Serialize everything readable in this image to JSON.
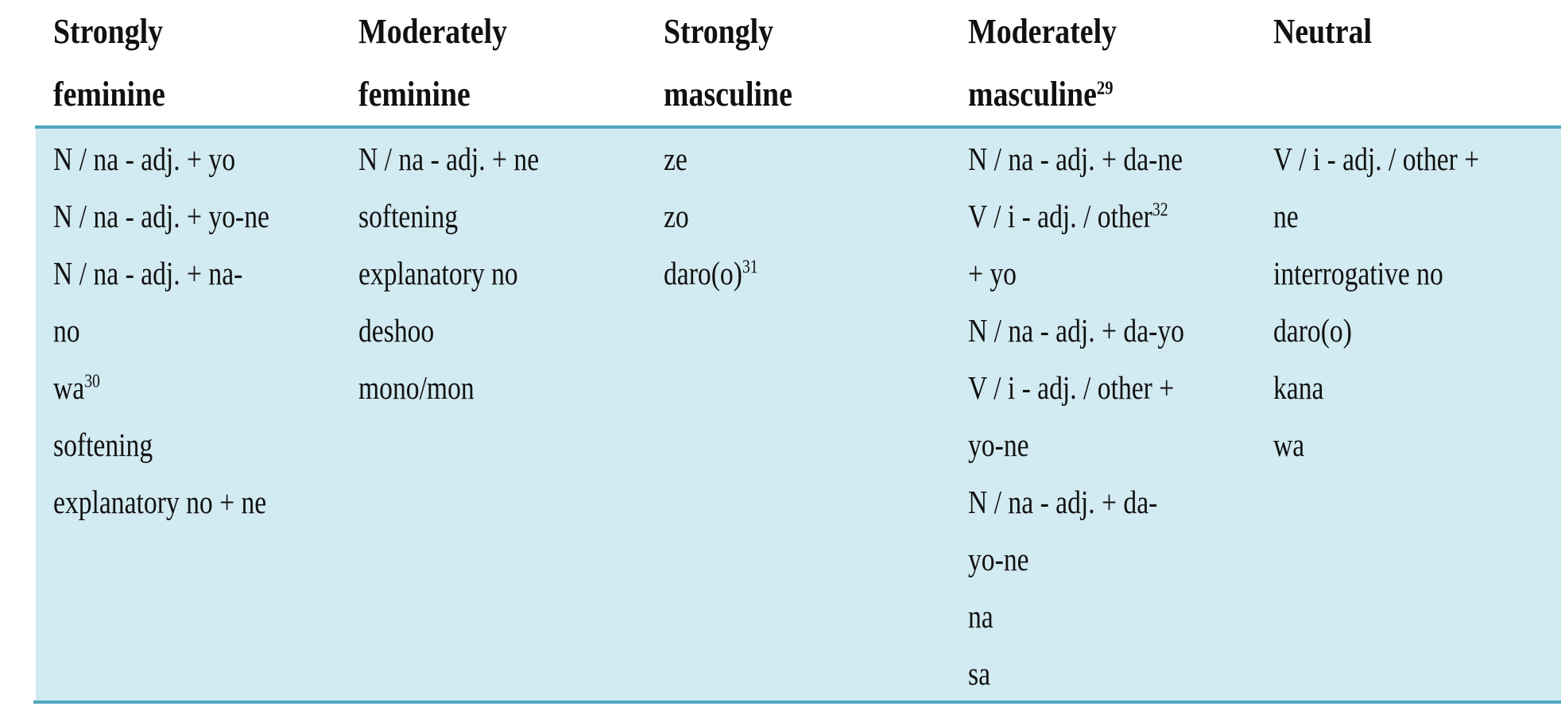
{
  "table": {
    "headers": [
      {
        "line1": "Strongly",
        "line2": "feminine",
        "sup": ""
      },
      {
        "line1": "Moderately",
        "line2": "feminine",
        "sup": ""
      },
      {
        "line1": "Strongly",
        "line2": "masculine",
        "sup": ""
      },
      {
        "line1": "Moderately",
        "line2": "masculine",
        "sup": "29"
      },
      {
        "line1": "Neutral",
        "line2": "",
        "sup": ""
      }
    ],
    "columns": [
      [
        {
          "text": "N / na - adj. + yo",
          "sup": ""
        },
        {
          "text": "N / na - adj. + yo-ne",
          "sup": ""
        },
        {
          "text": "N / na - adj. + na-",
          "sup": ""
        },
        {
          "text": "no",
          "sup": ""
        },
        {
          "text": "wa",
          "sup": "30"
        },
        {
          "text": "softening",
          "sup": ""
        },
        {
          "text": "explanatory no + ne",
          "sup": ""
        }
      ],
      [
        {
          "text": "N / na - adj. + ne",
          "sup": ""
        },
        {
          "text": "softening",
          "sup": ""
        },
        {
          "text": "explanatory no",
          "sup": ""
        },
        {
          "text": "deshoo",
          "sup": ""
        },
        {
          "text": "mono/mon",
          "sup": ""
        }
      ],
      [
        {
          "text": "ze",
          "sup": ""
        },
        {
          "text": "zo",
          "sup": ""
        },
        {
          "text": "daro(o)",
          "sup": "31"
        }
      ],
      [
        {
          "text": "N / na - adj. + da-ne",
          "sup": ""
        },
        {
          "text": "V / i - adj. / other",
          "sup": "32"
        },
        {
          "text": "+ yo",
          "sup": ""
        },
        {
          "text": "N / na - adj. + da-yo",
          "sup": ""
        },
        {
          "text": "V / i - adj. / other +",
          "sup": ""
        },
        {
          "text": "yo-ne",
          "sup": ""
        },
        {
          "text": "N / na - adj. + da-",
          "sup": ""
        },
        {
          "text": "yo-ne",
          "sup": ""
        },
        {
          "text": "na",
          "sup": ""
        },
        {
          "text": "sa",
          "sup": ""
        }
      ],
      [
        {
          "text": "V / i - adj. / other  +",
          "sup": ""
        },
        {
          "text": "ne",
          "sup": ""
        },
        {
          "text": "interrogative no",
          "sup": ""
        },
        {
          "text": "daro(o)",
          "sup": ""
        },
        {
          "text": "kana",
          "sup": ""
        },
        {
          "text": "wa",
          "sup": ""
        }
      ]
    ],
    "colors": {
      "border": "#4fa6bf",
      "body_bg": "#d2eaf1"
    }
  }
}
